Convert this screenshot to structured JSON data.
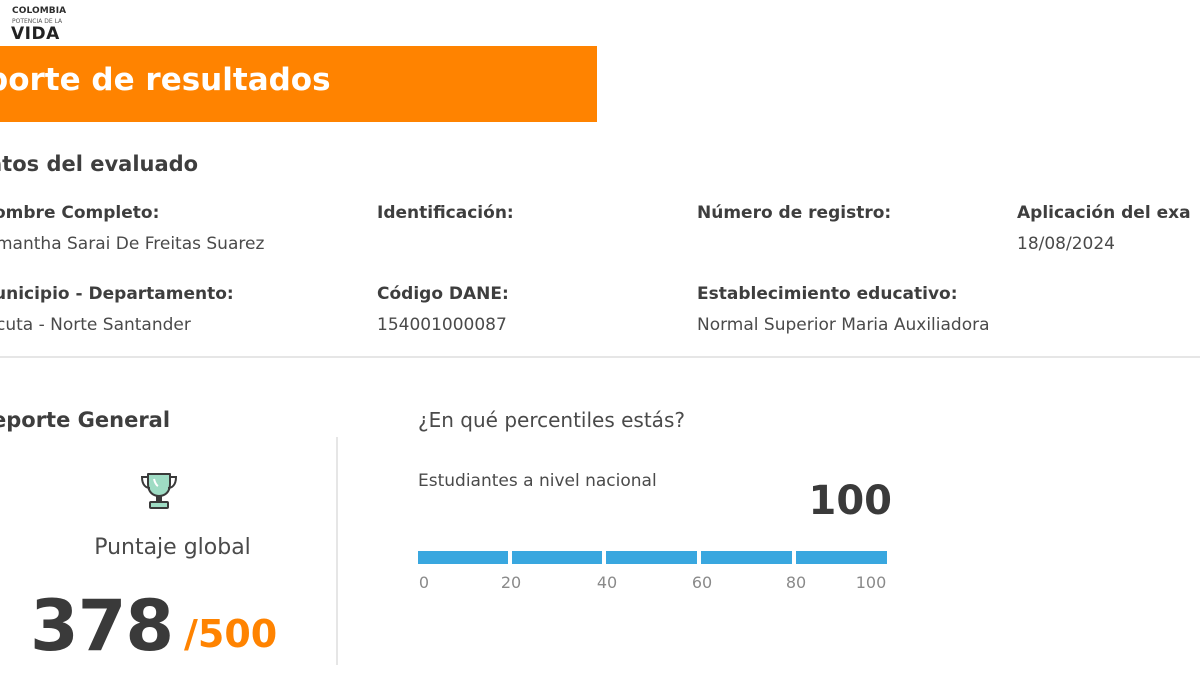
{
  "logo": {
    "top": "COLOMBIA",
    "middle": "POTENCIA DE LA",
    "big": "VIDA",
    "icon": "colombia-flag-mark"
  },
  "banner": {
    "title": "porte de resultados",
    "color": "#ff8300"
  },
  "evaluado": {
    "heading": "atos del evaluado",
    "fields": [
      {
        "label": "ombre Completo:",
        "value": "mantha Sarai De Freitas Suarez"
      },
      {
        "label": "Identificación:",
        "value": ""
      },
      {
        "label": "Número de registro:",
        "value": ""
      },
      {
        "label": "Aplicación del exa",
        "value": "18/08/2024"
      },
      {
        "label": "unicipio - Departamento:",
        "value": "cuta -  Norte Santander"
      },
      {
        "label": "Código DANE:",
        "value": "154001000087"
      },
      {
        "label": "Establecimiento educativo:",
        "value": "Normal Superior Maria Auxiliadora"
      }
    ]
  },
  "general": {
    "heading": "eporte General",
    "icon": "trophy-icon",
    "label": "Puntaje global",
    "score": "378",
    "max": "/500"
  },
  "percentiles": {
    "question": "¿En qué percentiles estás?",
    "subtitle": "Estudiantes a nivel nacional",
    "value": "100",
    "bar_color": "#39a7df",
    "ticks": [
      "0",
      "20",
      "40",
      "60",
      "80",
      "100"
    ]
  }
}
